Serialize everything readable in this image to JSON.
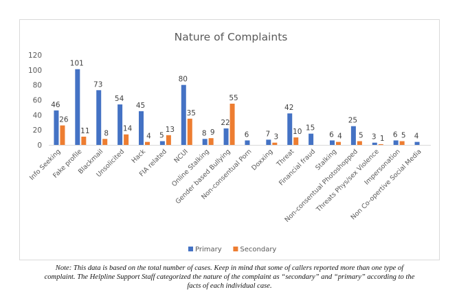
{
  "chart_data": {
    "type": "bar",
    "title": "Nature of Complaints",
    "xlabel": "",
    "ylabel": "",
    "ylim": [
      0,
      120
    ],
    "yticks": [
      0,
      20,
      40,
      60,
      80,
      100,
      120
    ],
    "grid": false,
    "legend_position": "bottom",
    "categories": [
      "Info Seeking",
      "Fake profile",
      "Blackmail",
      "Unsolicited",
      "Hack",
      "FIA related",
      "NCUI",
      "Online Stalking",
      "Gender based Bullying",
      "Non-consentual Porn",
      "Doxxing",
      "Threat",
      "Financial fraud",
      "Stalking",
      "Non-consentual Photoshopped",
      "Threats Phys/sex Violence",
      "Impersonation",
      "Non Co-opertive Social Media"
    ],
    "series": [
      {
        "name": "Primary",
        "color": "#4472C4",
        "values": [
          46,
          101,
          73,
          54,
          45,
          5,
          80,
          8,
          22,
          6,
          7,
          42,
          15,
          6,
          25,
          3,
          6,
          4
        ]
      },
      {
        "name": "Secondary",
        "color": "#ED7D31",
        "values": [
          26,
          11,
          8,
          14,
          4,
          13,
          35,
          9,
          55,
          null,
          3,
          10,
          null,
          4,
          5,
          1,
          5,
          null
        ]
      }
    ]
  },
  "note": {
    "lines": [
      "Note: This data is based on the total number of cases. Keep in mind that some of callers reported more than one type of",
      "complaint. The Helpline Support Staff categorized the nature of the complaint as “secondary” and “primary” according to the",
      "facts of each individual case."
    ]
  }
}
